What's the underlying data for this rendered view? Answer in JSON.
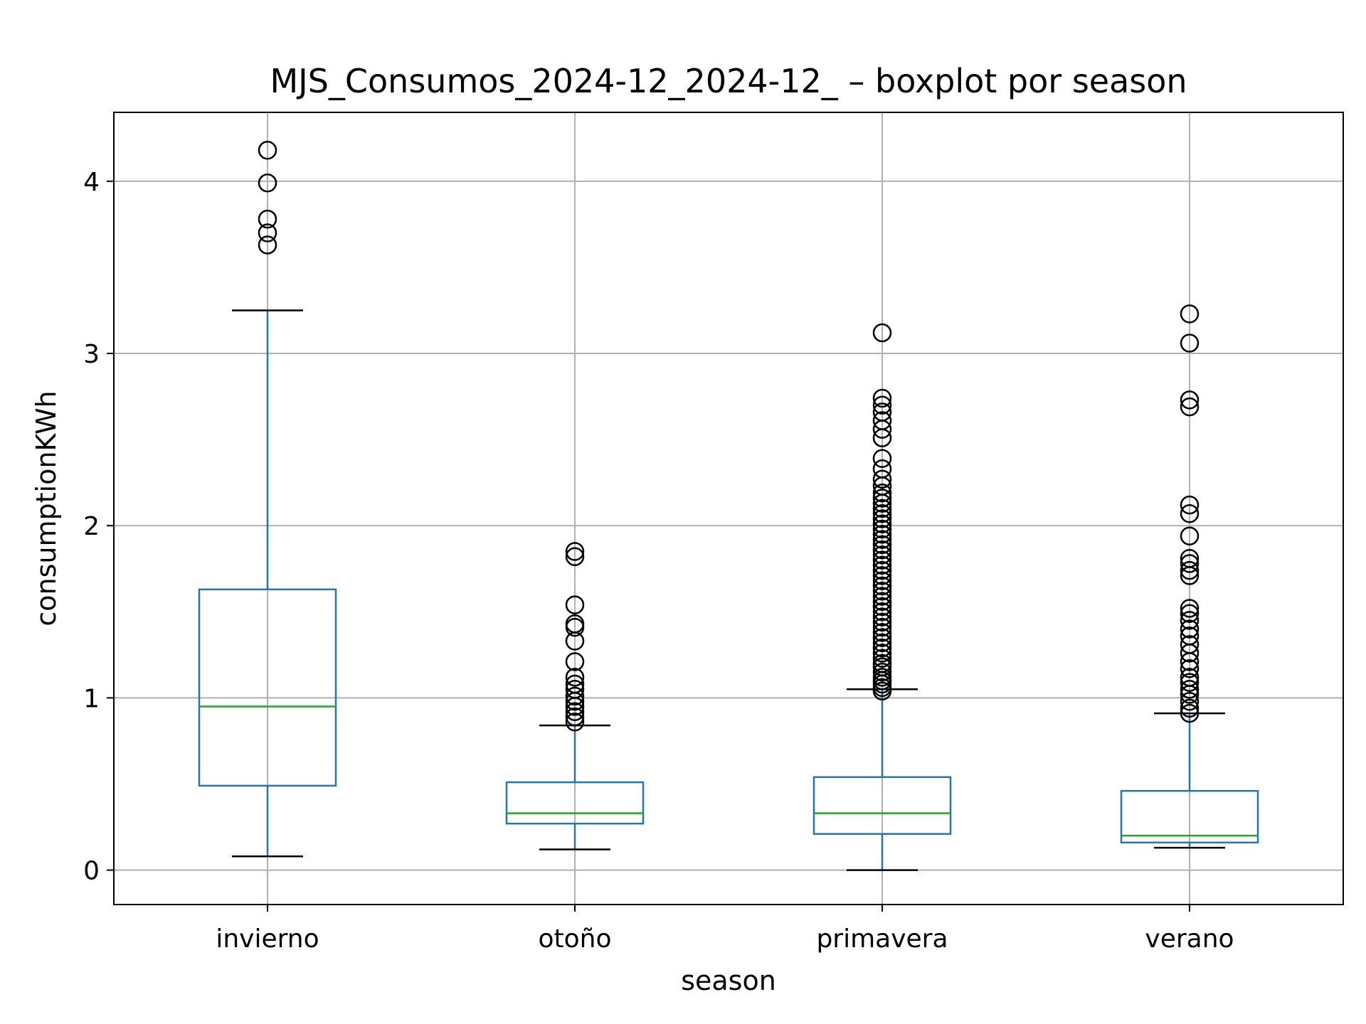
{
  "chart_data": {
    "type": "boxplot",
    "title": "MJS_Consumos_2024-12_2024-12_ – boxplot por season",
    "xlabel": "season",
    "ylabel": "consumptionKWh",
    "ylim": [
      -0.2,
      4.4
    ],
    "yticks": [
      0,
      1,
      2,
      3,
      4
    ],
    "grid": true,
    "categories": [
      "invierno",
      "otoño",
      "primavera",
      "verano"
    ],
    "colors": {
      "box": "#1f77b4",
      "median": "#2ca02c",
      "whisker_cap": "#000000",
      "outlier": "#000000",
      "grid": "#b0b0b0"
    },
    "boxes": [
      {
        "category": "invierno",
        "whisker_low": 0.08,
        "q1": 0.49,
        "median": 0.95,
        "q3": 1.63,
        "whisker_high": 3.25,
        "outliers": [
          3.63,
          3.7,
          3.78,
          3.99,
          4.18
        ]
      },
      {
        "category": "otoño",
        "whisker_low": 0.12,
        "q1": 0.27,
        "median": 0.33,
        "q3": 0.51,
        "whisker_high": 0.84,
        "outliers": [
          0.86,
          0.89,
          0.92,
          0.95,
          0.98,
          1.01,
          1.05,
          1.08,
          1.12,
          1.21,
          1.33,
          1.41,
          1.43,
          1.54,
          1.82,
          1.85
        ]
      },
      {
        "category": "primavera",
        "whisker_low": 0.0,
        "q1": 0.21,
        "median": 0.33,
        "q3": 0.54,
        "whisker_high": 1.05,
        "outliers": [
          1.04,
          1.06,
          1.08,
          1.1,
          1.12,
          1.15,
          1.18,
          1.2,
          1.23,
          1.26,
          1.29,
          1.32,
          1.35,
          1.38,
          1.41,
          1.44,
          1.47,
          1.5,
          1.53,
          1.56,
          1.59,
          1.62,
          1.65,
          1.68,
          1.71,
          1.74,
          1.77,
          1.8,
          1.83,
          1.86,
          1.89,
          1.92,
          1.95,
          1.98,
          2.01,
          2.04,
          2.07,
          2.1,
          2.13,
          2.16,
          2.19,
          2.23,
          2.27,
          2.33,
          2.39,
          2.51,
          2.56,
          2.61,
          2.66,
          2.7,
          2.74,
          3.12
        ]
      },
      {
        "category": "verano",
        "whisker_low": 0.13,
        "q1": 0.16,
        "median": 0.2,
        "q3": 0.46,
        "whisker_high": 0.91,
        "outliers": [
          0.91,
          0.94,
          0.98,
          1.02,
          1.05,
          1.09,
          1.12,
          1.17,
          1.21,
          1.26,
          1.31,
          1.36,
          1.4,
          1.45,
          1.49,
          1.52,
          1.71,
          1.74,
          1.78,
          1.81,
          1.94,
          2.07,
          2.12,
          2.69,
          2.73,
          3.06,
          3.23
        ]
      }
    ]
  }
}
